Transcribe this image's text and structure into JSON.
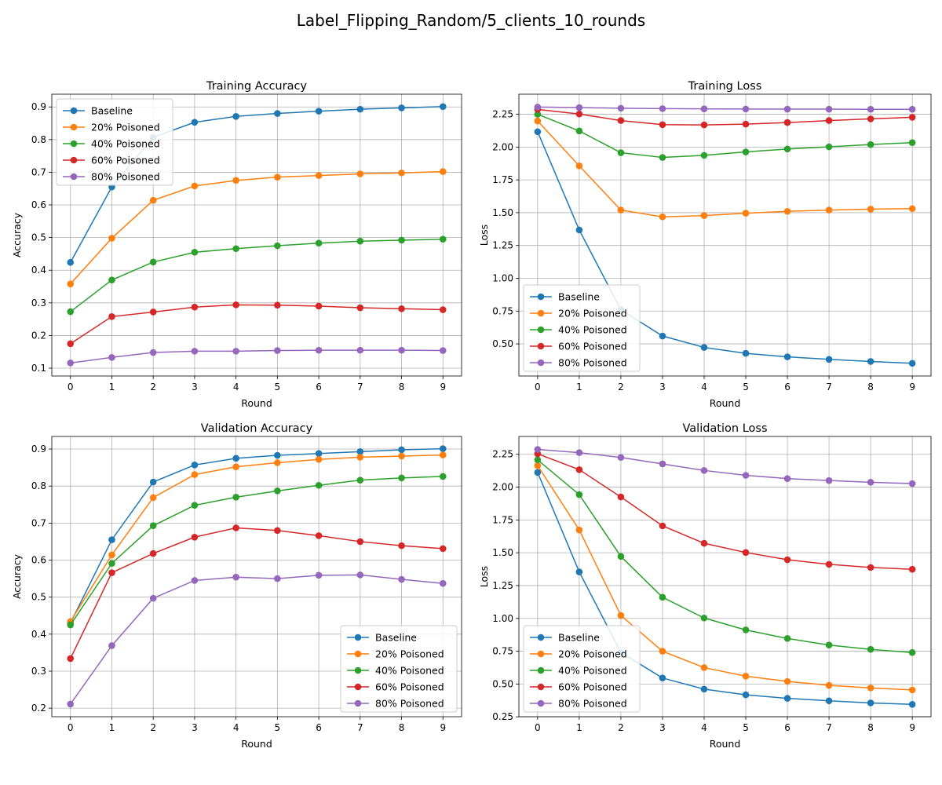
{
  "figure_title": "Label_Flipping_Random/5_clients_10_rounds",
  "colors": {
    "Baseline": "#1f77b4",
    "20% Poisoned": "#ff7f0e",
    "40% Poisoned": "#2ca02c",
    "60% Poisoned": "#d62728",
    "80% Poisoned": "#9467bd"
  },
  "chart_data": [
    {
      "type": "line",
      "title": "Training Accuracy",
      "xlabel": "Round",
      "ylabel": "Accuracy",
      "x": [
        0,
        1,
        2,
        3,
        4,
        5,
        6,
        7,
        8,
        9
      ],
      "xlim": [
        -0.45,
        9.45
      ],
      "ylim": [
        0.076,
        0.939
      ],
      "yticks": [
        0.1,
        0.2,
        0.3,
        0.4,
        0.5,
        0.6,
        0.7,
        0.8,
        0.9
      ],
      "ytick_labels": [
        "0.1",
        "0.2",
        "0.3",
        "0.4",
        "0.5",
        "0.6",
        "0.7",
        "0.8",
        "0.9"
      ],
      "grid": true,
      "legend": "upper left",
      "series": [
        {
          "name": "Baseline",
          "values": [
            0.424,
            0.655,
            0.807,
            0.853,
            0.871,
            0.88,
            0.887,
            0.893,
            0.897,
            0.901
          ]
        },
        {
          "name": "20% Poisoned",
          "values": [
            0.358,
            0.498,
            0.614,
            0.658,
            0.675,
            0.685,
            0.69,
            0.695,
            0.698,
            0.702
          ]
        },
        {
          "name": "40% Poisoned",
          "values": [
            0.273,
            0.37,
            0.425,
            0.455,
            0.466,
            0.475,
            0.483,
            0.489,
            0.492,
            0.495
          ]
        },
        {
          "name": "60% Poisoned",
          "values": [
            0.175,
            0.258,
            0.272,
            0.287,
            0.294,
            0.293,
            0.29,
            0.285,
            0.282,
            0.279
          ]
        },
        {
          "name": "80% Poisoned",
          "values": [
            0.116,
            0.133,
            0.148,
            0.152,
            0.152,
            0.154,
            0.155,
            0.155,
            0.155,
            0.154
          ]
        }
      ]
    },
    {
      "type": "line",
      "title": "Training Loss",
      "xlabel": "Round",
      "ylabel": "Loss",
      "x": [
        0,
        1,
        2,
        3,
        4,
        5,
        6,
        7,
        8,
        9
      ],
      "xlim": [
        -0.45,
        9.45
      ],
      "ylim": [
        0.255,
        2.403
      ],
      "yticks": [
        0.5,
        0.75,
        1.0,
        1.25,
        1.5,
        1.75,
        2.0,
        2.25
      ],
      "ytick_labels": [
        "0.50",
        "0.75",
        "1.00",
        "1.25",
        "1.50",
        "1.75",
        "2.00",
        "2.25"
      ],
      "grid": true,
      "legend": "lower left",
      "series": [
        {
          "name": "Baseline",
          "values": [
            2.117,
            1.368,
            0.76,
            0.56,
            0.473,
            0.428,
            0.401,
            0.382,
            0.366,
            0.352
          ]
        },
        {
          "name": "20% Poisoned",
          "values": [
            2.199,
            1.857,
            1.52,
            1.468,
            1.478,
            1.496,
            1.51,
            1.52,
            1.527,
            1.531
          ]
        },
        {
          "name": "40% Poisoned",
          "values": [
            2.25,
            2.123,
            1.957,
            1.921,
            1.937,
            1.963,
            1.985,
            2.002,
            2.019,
            2.034
          ]
        },
        {
          "name": "60% Poisoned",
          "values": [
            2.287,
            2.252,
            2.202,
            2.171,
            2.169,
            2.175,
            2.187,
            2.202,
            2.215,
            2.227
          ]
        },
        {
          "name": "80% Poisoned",
          "values": [
            2.305,
            2.301,
            2.296,
            2.293,
            2.291,
            2.29,
            2.289,
            2.289,
            2.288,
            2.288
          ]
        }
      ]
    },
    {
      "type": "line",
      "title": "Validation Accuracy",
      "xlabel": "Round",
      "ylabel": "Accuracy",
      "x": [
        0,
        1,
        2,
        3,
        4,
        5,
        6,
        7,
        8,
        9
      ],
      "xlim": [
        -0.45,
        9.45
      ],
      "ylim": [
        0.177,
        0.934
      ],
      "yticks": [
        0.2,
        0.3,
        0.4,
        0.5,
        0.6,
        0.7,
        0.8,
        0.9
      ],
      "ytick_labels": [
        "0.2",
        "0.3",
        "0.4",
        "0.5",
        "0.6",
        "0.7",
        "0.8",
        "0.9"
      ],
      "grid": true,
      "legend": "lower right",
      "series": [
        {
          "name": "Baseline",
          "values": [
            0.43,
            0.655,
            0.811,
            0.857,
            0.875,
            0.883,
            0.888,
            0.893,
            0.898,
            0.901
          ]
        },
        {
          "name": "20% Poisoned",
          "values": [
            0.434,
            0.614,
            0.769,
            0.831,
            0.852,
            0.863,
            0.872,
            0.878,
            0.881,
            0.884
          ]
        },
        {
          "name": "40% Poisoned",
          "values": [
            0.425,
            0.591,
            0.693,
            0.748,
            0.77,
            0.787,
            0.802,
            0.816,
            0.822,
            0.826
          ]
        },
        {
          "name": "60% Poisoned",
          "values": [
            0.334,
            0.566,
            0.618,
            0.662,
            0.687,
            0.68,
            0.666,
            0.65,
            0.639,
            0.631
          ]
        },
        {
          "name": "80% Poisoned",
          "values": [
            0.211,
            0.369,
            0.497,
            0.545,
            0.554,
            0.55,
            0.559,
            0.56,
            0.548,
            0.537
          ]
        }
      ]
    },
    {
      "type": "line",
      "title": "Validation Loss",
      "xlabel": "Round",
      "ylabel": "Loss",
      "x": [
        0,
        1,
        2,
        3,
        4,
        5,
        6,
        7,
        8,
        9
      ],
      "xlim": [
        -0.45,
        9.45
      ],
      "ylim": [
        0.251,
        2.386
      ],
      "yticks": [
        0.25,
        0.5,
        0.75,
        1.0,
        1.25,
        1.5,
        1.75,
        2.0,
        2.25
      ],
      "ytick_labels": [
        "0.25",
        "0.50",
        "0.75",
        "1.00",
        "1.25",
        "1.50",
        "1.75",
        "2.00",
        "2.25"
      ],
      "grid": true,
      "legend": "lower left",
      "series": [
        {
          "name": "Baseline",
          "values": [
            2.112,
            1.354,
            0.741,
            0.546,
            0.461,
            0.418,
            0.391,
            0.372,
            0.356,
            0.345
          ]
        },
        {
          "name": "20% Poisoned",
          "values": [
            2.164,
            1.674,
            1.022,
            0.75,
            0.625,
            0.56,
            0.52,
            0.49,
            0.47,
            0.455
          ]
        },
        {
          "name": "40% Poisoned",
          "values": [
            2.208,
            1.943,
            1.472,
            1.161,
            1.003,
            0.912,
            0.847,
            0.797,
            0.764,
            0.74
          ]
        },
        {
          "name": "60% Poisoned",
          "values": [
            2.254,
            2.133,
            1.925,
            1.705,
            1.572,
            1.502,
            1.447,
            1.412,
            1.388,
            1.374
          ]
        },
        {
          "name": "80% Poisoned",
          "values": [
            2.287,
            2.263,
            2.226,
            2.177,
            2.127,
            2.09,
            2.065,
            2.05,
            2.037,
            2.027
          ]
        }
      ]
    }
  ]
}
